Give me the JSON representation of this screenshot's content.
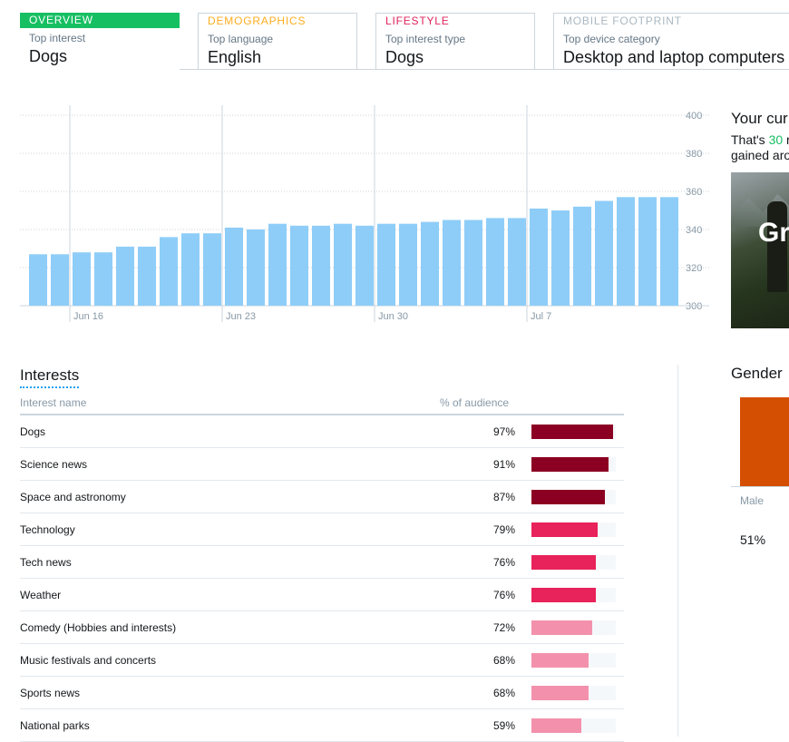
{
  "tabs": [
    {
      "head": "OVERVIEW",
      "sub": "Top interest",
      "value": "Dogs",
      "color": "#17bf63",
      "active": true
    },
    {
      "head": "DEMOGRAPHICS",
      "sub": "Top language",
      "value": "English",
      "color": "#ffad1f",
      "active": false
    },
    {
      "head": "LIFESTYLE",
      "sub": "Top interest type",
      "value": "Dogs",
      "color": "#e0245e",
      "active": false
    },
    {
      "head": "MOBILE FOOTPRINT",
      "sub": "Top device category",
      "value": "Desktop and laptop computers",
      "color": "#aab8c2",
      "active": false
    }
  ],
  "chart_data": {
    "type": "bar",
    "title": "",
    "xlabel": "",
    "ylabel": "",
    "ylim": [
      300,
      400
    ],
    "yticks": [
      "400",
      "380",
      "360",
      "340",
      "320",
      "300"
    ],
    "xtick_labels": [
      "Jun 16",
      "Jun 23",
      "Jun 30",
      "Jul 7"
    ],
    "xtick_index": [
      2,
      9,
      16,
      23
    ],
    "values": [
      327,
      327,
      328,
      328,
      331,
      331,
      336,
      338,
      338,
      341,
      340,
      343,
      342,
      342,
      343,
      342,
      343,
      343,
      344,
      345,
      345,
      346,
      346,
      351,
      350,
      352,
      355,
      357,
      357,
      357
    ],
    "bar_color": "#8ecdf8",
    "grid": true
  },
  "promo": {
    "title": "Your cur",
    "line1_pre": "That's ",
    "line1_accent": "30",
    "line1_post": " r",
    "line2": "gained aro",
    "image_text": "Gr"
  },
  "interests": {
    "title": "Interests",
    "col_name": "Interest name",
    "col_pct": "% of audience",
    "rows": [
      {
        "name": "Dogs",
        "pct": "97%",
        "value": 97,
        "color": "#8b0022"
      },
      {
        "name": "Science news",
        "pct": "91%",
        "value": 91,
        "color": "#8b0022"
      },
      {
        "name": "Space and astronomy",
        "pct": "87%",
        "value": 87,
        "color": "#8b0022"
      },
      {
        "name": "Technology",
        "pct": "79%",
        "value": 79,
        "color": "#e8225a"
      },
      {
        "name": "Tech news",
        "pct": "76%",
        "value": 76,
        "color": "#e8225a"
      },
      {
        "name": "Weather",
        "pct": "76%",
        "value": 76,
        "color": "#e8225a"
      },
      {
        "name": "Comedy (Hobbies and interests)",
        "pct": "72%",
        "value": 72,
        "color": "#f391ac"
      },
      {
        "name": "Music festivals and concerts",
        "pct": "68%",
        "value": 68,
        "color": "#f391ac"
      },
      {
        "name": "Sports news",
        "pct": "68%",
        "value": 68,
        "color": "#f391ac"
      },
      {
        "name": "National parks",
        "pct": "59%",
        "value": 59,
        "color": "#f391ac"
      }
    ]
  },
  "gender": {
    "title": "Gender",
    "label": "Male",
    "pct": "51%",
    "color": "#d54f03"
  }
}
